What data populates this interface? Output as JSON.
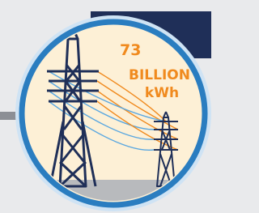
{
  "stat": {
    "number": "73",
    "line1": "BILLION",
    "line2": "kWh"
  }
}
